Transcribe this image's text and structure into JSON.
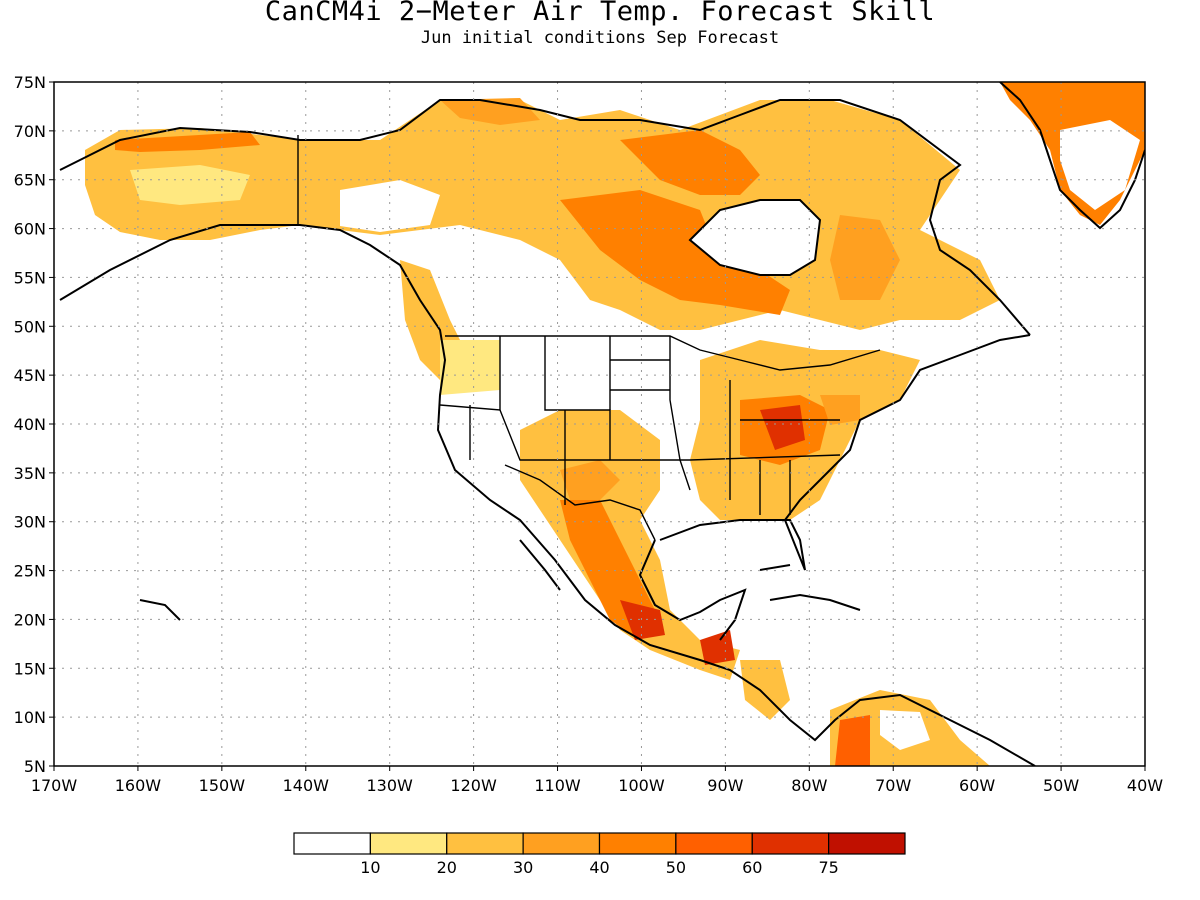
{
  "title": "CanCM4i 2−Meter Air Temp. Forecast Skill",
  "subtitle": "Jun initial conditions  Sep Forecast",
  "map": {
    "lon_range": [
      -170,
      -40
    ],
    "lat_range": [
      5,
      75
    ],
    "lat_ticks": [
      5,
      10,
      15,
      20,
      25,
      30,
      35,
      40,
      45,
      50,
      55,
      60,
      65,
      70,
      75
    ],
    "lat_labels": [
      "5N",
      "10N",
      "15N",
      "20N",
      "25N",
      "30N",
      "35N",
      "40N",
      "45N",
      "50N",
      "55N",
      "60N",
      "65N",
      "70N",
      "75N"
    ],
    "lon_ticks": [
      -170,
      -160,
      -150,
      -140,
      -130,
      -120,
      -110,
      -100,
      -90,
      -80,
      -70,
      -60,
      -50,
      -40
    ],
    "lon_labels": [
      "170W",
      "160W",
      "150W",
      "140W",
      "130W",
      "120W",
      "110W",
      "100W",
      "90W",
      "80W",
      "70W",
      "60W",
      "50W",
      "40W"
    ],
    "grid": "dotted"
  },
  "colorbar": {
    "labels": [
      "10",
      "20",
      "30",
      "40",
      "50",
      "60",
      "75"
    ],
    "colors": [
      "#ffffff",
      "#ffe880",
      "#ffc040",
      "#ffa020",
      "#ff8000",
      "#ff6000",
      "#e03000",
      "#c01000"
    ]
  }
}
